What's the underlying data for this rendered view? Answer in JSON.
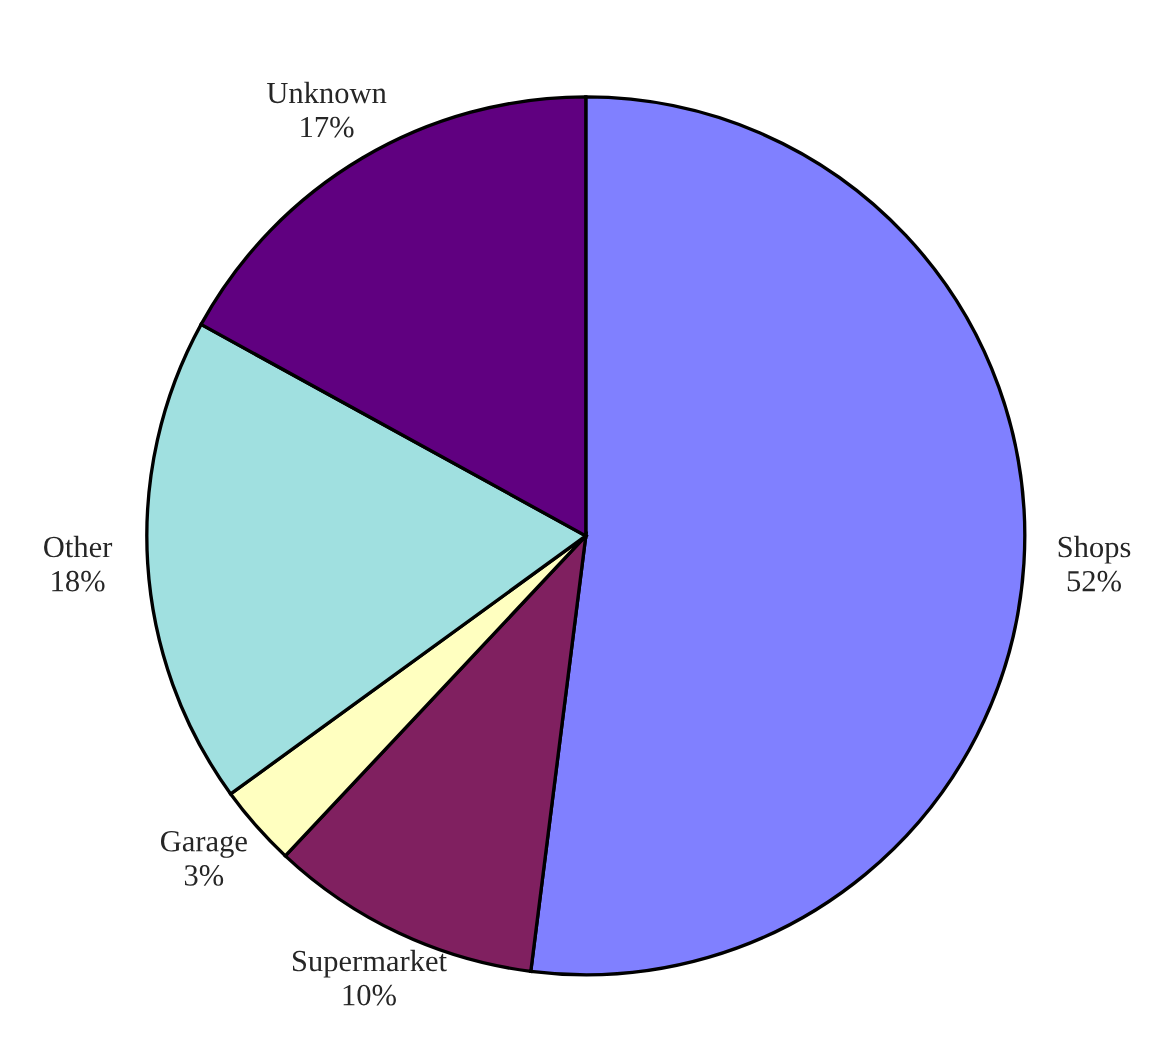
{
  "chart_data": {
    "type": "pie",
    "categories": [
      "Shops",
      "Supermarket",
      "Garage",
      "Other",
      "Unknown"
    ],
    "values": [
      52,
      10,
      3,
      18,
      17
    ],
    "value_labels": [
      "52%",
      "10%",
      "3%",
      "18%",
      "17%"
    ],
    "colors": [
      "#8080ff",
      "#802060",
      "#ffffc0",
      "#a0e0e0",
      "#600080"
    ]
  }
}
